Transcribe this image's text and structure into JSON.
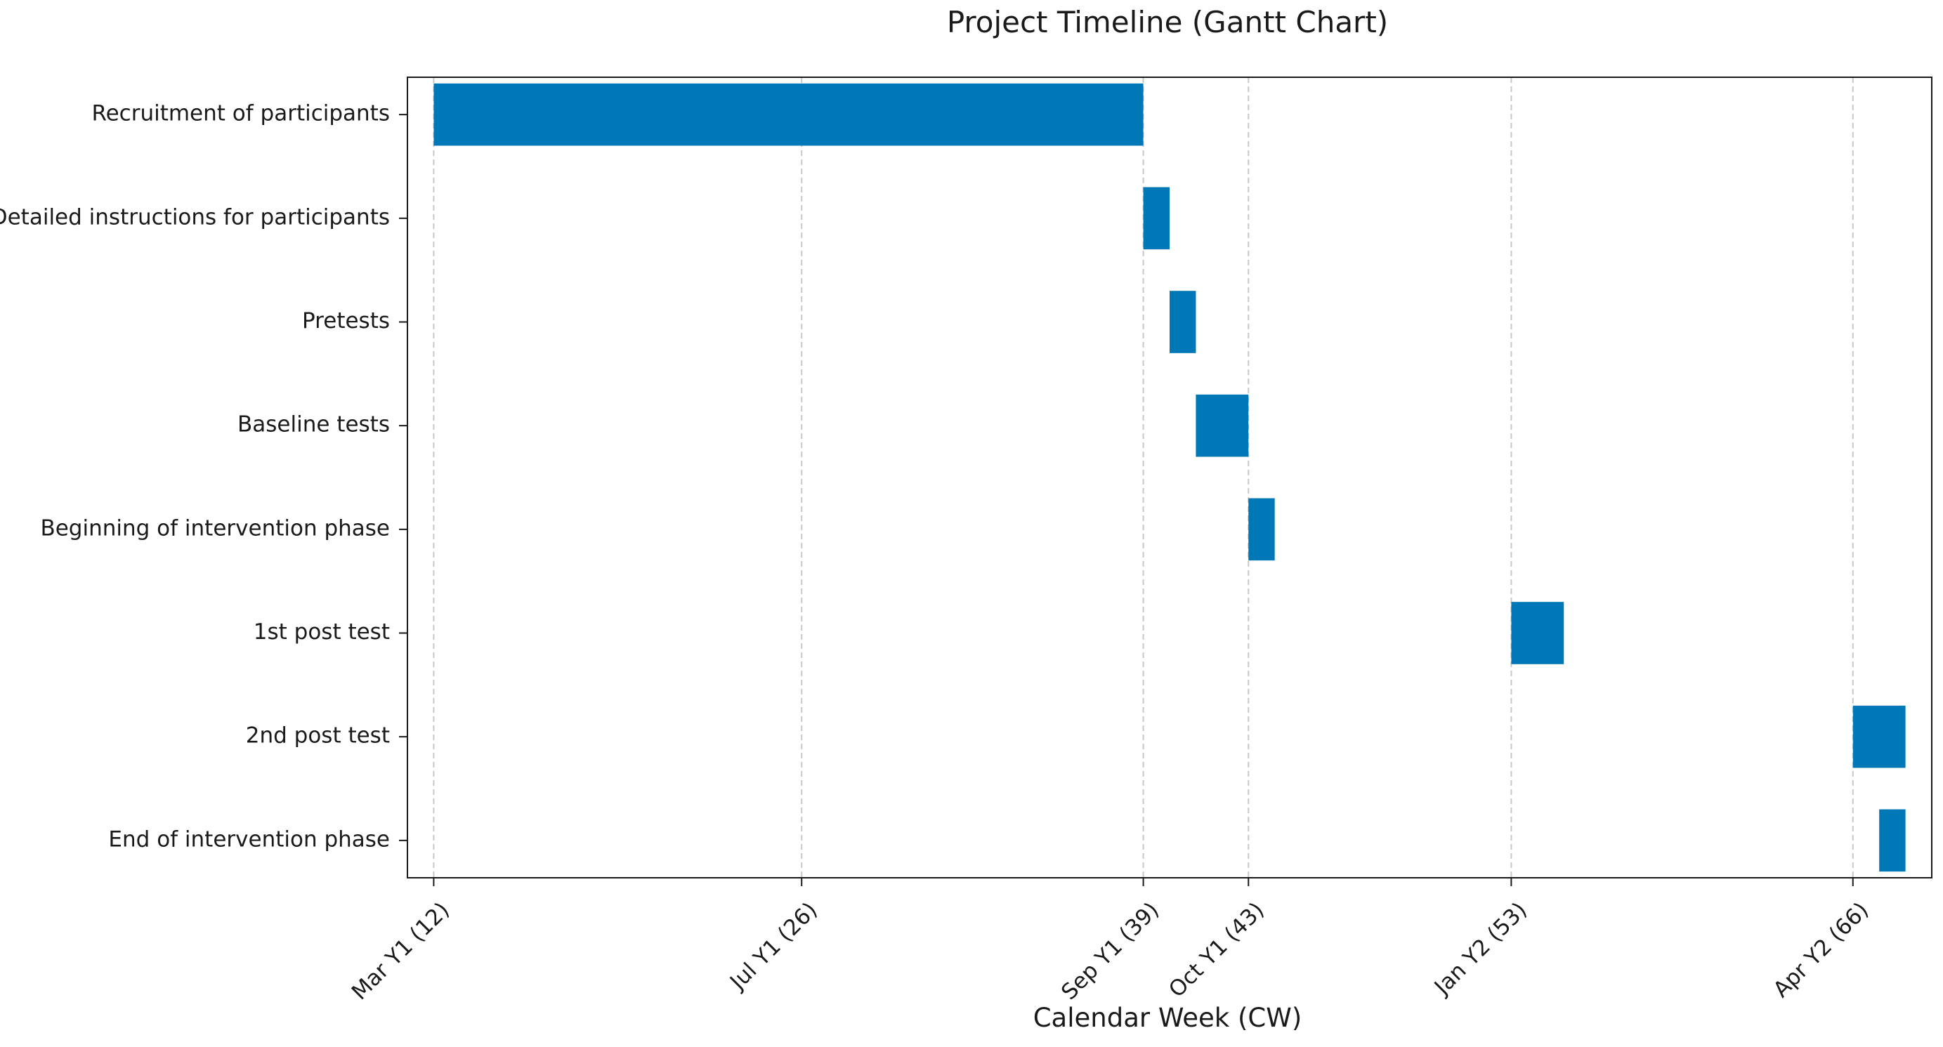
{
  "chart_data": {
    "type": "gantt",
    "title": "Project Timeline (Gantt Chart)",
    "xlabel": "Calendar Week (CW)",
    "ylabel": "",
    "xlim": [
      11,
      69
    ],
    "x_ticks": [
      {
        "value": 12,
        "label": "Mar Y1 (12)"
      },
      {
        "value": 26,
        "label": "Jul Y1 (26)"
      },
      {
        "value": 39,
        "label": "Sep Y1 (39)"
      },
      {
        "value": 43,
        "label": "Oct Y1 (43)"
      },
      {
        "value": 53,
        "label": "Jan Y2 (53)"
      },
      {
        "value": 66,
        "label": "Apr Y2 (66)"
      }
    ],
    "tasks": [
      {
        "name": "Recruitment of participants",
        "start": 12,
        "end": 39
      },
      {
        "name": "Detailed instructions for participants",
        "start": 39,
        "end": 40
      },
      {
        "name": "Pretests",
        "start": 40,
        "end": 41
      },
      {
        "name": "Baseline tests",
        "start": 41,
        "end": 43
      },
      {
        "name": "Beginning of intervention phase",
        "start": 43,
        "end": 44
      },
      {
        "name": "1st post test",
        "start": 53,
        "end": 55
      },
      {
        "name": "2nd post test",
        "start": 66,
        "end": 68
      },
      {
        "name": "End of intervention phase",
        "start": 67,
        "end": 68
      }
    ],
    "bar_color": "#0077b6",
    "grid": {
      "x": true,
      "y": false,
      "style": "dashed",
      "color": "#c8c8c8"
    }
  }
}
